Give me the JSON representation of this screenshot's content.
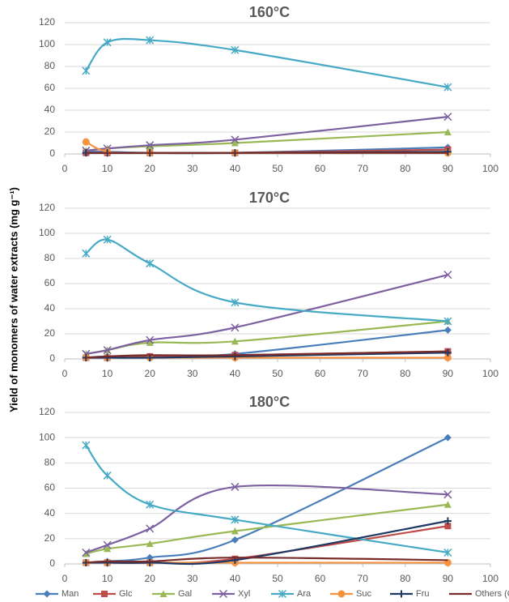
{
  "y_label": "Yield of monomers of water extracts (mg g⁻¹)",
  "legend": [
    {
      "name": "Man",
      "color": "#4a7ebb",
      "marker": "diamond"
    },
    {
      "name": "Glc",
      "color": "#be4b48",
      "marker": "square"
    },
    {
      "name": "Gal",
      "color": "#98b954",
      "marker": "triangle"
    },
    {
      "name": "Xyl",
      "color": "#7d60a0",
      "marker": "x"
    },
    {
      "name": "Ara",
      "color": "#46aac5",
      "marker": "star"
    },
    {
      "name": "Suc",
      "color": "#f69340",
      "marker": "circle"
    },
    {
      "name": "Fru",
      "color": "#1f3864",
      "marker": "plus"
    },
    {
      "name": "Others (GalA+GlcA+Rha)",
      "color": "#772c2a",
      "marker": "none"
    }
  ],
  "chart_data": [
    {
      "type": "line",
      "title": "160°C",
      "x": [
        5,
        10,
        20,
        40,
        90
      ],
      "xlim": [
        0,
        100
      ],
      "xticks": [
        0,
        10,
        20,
        30,
        40,
        50,
        60,
        70,
        80,
        90,
        100
      ],
      "ylim": [
        0,
        120
      ],
      "yticks": [
        0,
        20,
        40,
        60,
        80,
        100,
        120
      ],
      "grid": true,
      "series": [
        {
          "values": [
            2,
            2,
            1,
            1,
            6
          ]
        },
        {
          "values": [
            1,
            1,
            1,
            1,
            4
          ]
        },
        {
          "values": [
            3,
            5,
            7,
            10,
            20
          ]
        },
        {
          "values": [
            3,
            5,
            8,
            13,
            34
          ]
        },
        {
          "values": [
            76,
            102,
            104,
            95,
            61
          ]
        },
        {
          "values": [
            11,
            2,
            1,
            1,
            1
          ]
        },
        {
          "values": [
            1,
            1,
            1,
            1,
            2
          ]
        },
        {
          "values": [
            1,
            1,
            1,
            1,
            1
          ]
        }
      ]
    },
    {
      "type": "line",
      "title": "170°C",
      "x": [
        5,
        10,
        20,
        40,
        90
      ],
      "xlim": [
        0,
        100
      ],
      "xticks": [
        0,
        10,
        20,
        30,
        40,
        50,
        60,
        70,
        80,
        90,
        100
      ],
      "ylim": [
        0,
        120
      ],
      "yticks": [
        0,
        20,
        40,
        60,
        80,
        100,
        120
      ],
      "grid": true,
      "series": [
        {
          "values": [
            1,
            2,
            2,
            4,
            23
          ]
        },
        {
          "values": [
            1,
            1,
            2,
            3,
            6
          ]
        },
        {
          "values": [
            4,
            7,
            13,
            14,
            30
          ]
        },
        {
          "values": [
            4,
            7,
            15,
            25,
            67
          ]
        },
        {
          "values": [
            84,
            95,
            76,
            45,
            30
          ]
        },
        {
          "values": [
            1,
            1,
            1,
            1,
            1
          ]
        },
        {
          "values": [
            1,
            1,
            1,
            2,
            5
          ]
        },
        {
          "values": [
            1,
            2,
            3,
            3,
            6
          ]
        }
      ]
    },
    {
      "type": "line",
      "title": "180°C",
      "x": [
        5,
        10,
        20,
        40,
        90
      ],
      "xlim": [
        0,
        100
      ],
      "xticks": [
        0,
        10,
        20,
        30,
        40,
        50,
        60,
        70,
        80,
        90,
        100
      ],
      "ylim": [
        0,
        120
      ],
      "yticks": [
        0,
        20,
        40,
        60,
        80,
        100,
        120
      ],
      "grid": true,
      "series": [
        {
          "values": [
            1,
            2,
            5,
            19,
            100
          ]
        },
        {
          "values": [
            1,
            1,
            1,
            4,
            30
          ]
        },
        {
          "values": [
            8,
            12,
            16,
            26,
            47
          ]
        },
        {
          "values": [
            9,
            15,
            28,
            61,
            55
          ]
        },
        {
          "values": [
            94,
            70,
            47,
            35,
            9
          ]
        },
        {
          "values": [
            1,
            1,
            1,
            1,
            1
          ]
        },
        {
          "values": [
            1,
            1,
            1,
            3,
            34
          ]
        },
        {
          "values": [
            1,
            2,
            2,
            5,
            3
          ]
        }
      ]
    }
  ]
}
